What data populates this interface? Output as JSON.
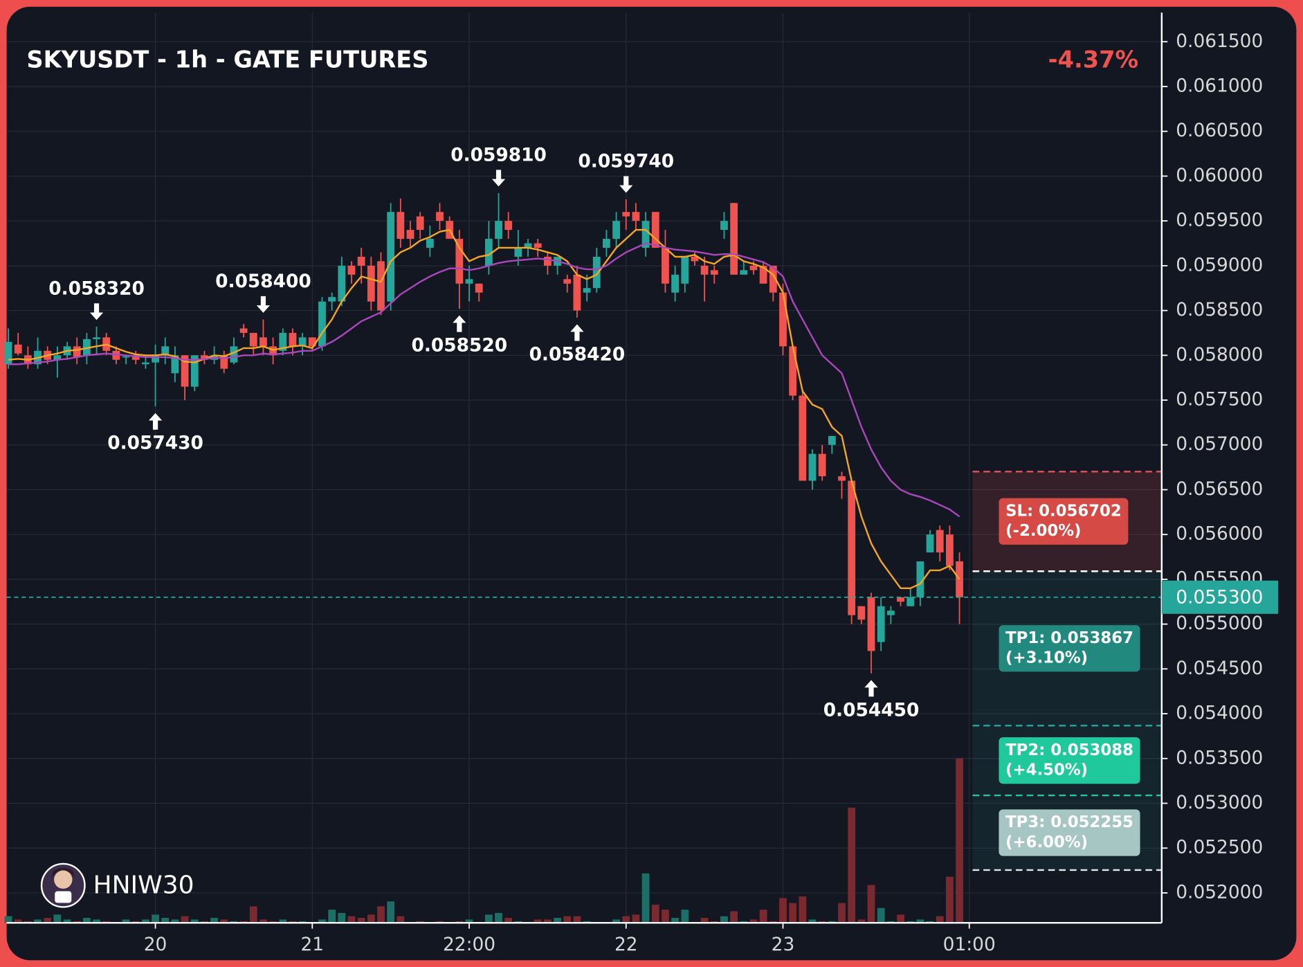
{
  "chart_data": {
    "type": "candlestick",
    "title": "SKYUSDT - 1h - GATE FUTURES",
    "change": "-4.37%",
    "watermark": "HNIW30",
    "categories": [
      null,
      null,
      null,
      null,
      null,
      null,
      null,
      null,
      null,
      null,
      null,
      null,
      null,
      null,
      null,
      "20",
      null,
      null,
      null,
      null,
      null,
      null,
      null,
      null,
      null,
      null,
      null,
      null,
      null,
      null,
      null,
      "21",
      null,
      null,
      null,
      null,
      null,
      null,
      null,
      null,
      null,
      null,
      null,
      null,
      null,
      null,
      null,
      "22:00",
      null,
      null,
      null,
      null,
      null,
      null,
      null,
      null,
      null,
      null,
      null,
      null,
      null,
      null,
      null,
      "22",
      null,
      null,
      null,
      null,
      null,
      null,
      null,
      null,
      null,
      null,
      null,
      null,
      null,
      null,
      null,
      "23",
      null,
      null,
      null,
      null,
      null,
      null,
      null,
      null,
      null,
      null,
      null,
      null,
      null,
      null,
      null,
      null,
      null,
      null,
      "01:00"
    ],
    "open": [
      0.0579,
      0.05812,
      0.058,
      0.0579,
      0.05805,
      0.05795,
      0.058,
      0.0581,
      0.058,
      0.05818,
      0.0582,
      0.05805,
      0.05798,
      0.058,
      0.0579,
      0.05792,
      0.058,
      0.0578,
      0.058,
      0.05765,
      0.058,
      0.05795,
      0.058,
      0.05792,
      0.0583,
      0.05825,
      0.0582,
      0.0581,
      0.05805,
      0.05825,
      0.0581,
      0.0582,
      0.0581,
      0.0586,
      0.0586,
      0.059,
      0.0591,
      0.059,
      0.05905,
      0.0586,
      0.0596,
      0.0594,
      0.05955,
      0.0592,
      0.0596,
      0.0595,
      0.0593,
      0.0588,
      0.0588,
      0.059,
      0.0593,
      0.0595,
      0.0591,
      0.0592,
      0.05925,
      0.0591,
      0.059,
      0.05885,
      0.0589,
      0.0587,
      0.05875,
      0.0592,
      0.0593,
      0.0596,
      0.0596,
      0.0592,
      0.0596,
      0.0592,
      0.0587,
      0.0588,
      0.0591,
      0.059,
      0.05895,
      0.0594,
      0.0597,
      0.0589,
      0.059,
      0.059,
      0.059,
      0.0587,
      0.0581,
      0.05755,
      0.0566,
      0.0569,
      0.057,
      0.05665,
      0.0566,
      0.0552,
      0.0553,
      0.0548,
      0.0551,
      0.0553,
      0.0552,
      0.0553,
      0.0558,
      0.05605,
      0.056,
      0.0557,
      null
    ],
    "high": [
      0.0583,
      0.05825,
      0.0581,
      0.0582,
      0.0581,
      0.0581,
      0.05815,
      0.0582,
      0.05825,
      0.05832,
      0.05825,
      0.0581,
      0.058,
      0.05805,
      0.058,
      0.05812,
      0.0582,
      0.0581,
      0.058,
      0.058,
      0.05805,
      0.0581,
      0.05805,
      0.0582,
      0.05835,
      0.05825,
      0.0584,
      0.0582,
      0.0583,
      0.0583,
      0.05825,
      0.0582,
      0.05865,
      0.0587,
      0.0591,
      0.05905,
      0.0592,
      0.0591,
      0.05915,
      0.0597,
      0.05975,
      0.0595,
      0.0596,
      0.05945,
      0.0597,
      0.05955,
      0.0594,
      0.059,
      0.0588,
      0.0595,
      0.05981,
      0.0596,
      0.0594,
      0.0593,
      0.0593,
      0.05915,
      0.0591,
      0.0589,
      0.059,
      0.0589,
      0.0592,
      0.0594,
      0.0596,
      0.05974,
      0.0597,
      0.0596,
      0.0596,
      0.0594,
      0.059,
      0.0591,
      0.05915,
      0.0591,
      0.059,
      0.0596,
      0.0597,
      0.05905,
      0.05905,
      0.05905,
      0.059,
      0.0588,
      0.0581,
      0.0576,
      0.05695,
      0.057,
      0.0571,
      0.0567,
      0.0566,
      0.0552,
      0.05535,
      0.0553,
      0.0552,
      0.0553,
      0.0554,
      0.0557,
      0.05605,
      0.0561,
      0.0561,
      0.0558,
      null
    ],
    "low": [
      0.05785,
      0.058,
      0.05785,
      0.05785,
      0.0579,
      0.05775,
      0.05795,
      0.0579,
      0.0579,
      0.058,
      0.058,
      0.0579,
      0.0579,
      0.0579,
      0.05785,
      0.05743,
      0.0579,
      0.0577,
      0.0575,
      0.0576,
      0.0579,
      0.0579,
      0.0578,
      0.0579,
      0.0582,
      0.058,
      0.058,
      0.0579,
      0.058,
      0.058,
      0.058,
      0.05805,
      0.05805,
      0.0585,
      0.05855,
      0.0588,
      0.0588,
      0.0585,
      0.05845,
      0.0585,
      0.0592,
      0.0592,
      0.0593,
      0.0591,
      0.0594,
      0.0593,
      0.05852,
      0.0586,
      0.0586,
      0.0589,
      0.0592,
      0.0593,
      0.059,
      0.0591,
      0.0591,
      0.0589,
      0.0589,
      0.0587,
      0.05842,
      0.0586,
      0.0587,
      0.0591,
      0.0592,
      0.0594,
      0.0594,
      0.0591,
      0.0592,
      0.0587,
      0.0586,
      0.0587,
      0.059,
      0.0586,
      0.0588,
      0.0593,
      0.0589,
      0.0589,
      0.0589,
      0.0588,
      0.0586,
      0.058,
      0.0575,
      0.0566,
      0.0565,
      0.0566,
      0.0569,
      0.0564,
      0.055,
      0.055,
      0.05445,
      0.0547,
      0.055,
      0.0552,
      0.0552,
      0.0552,
      0.0558,
      0.0557,
      0.0556,
      0.055,
      null
    ],
    "close": [
      0.05815,
      0.05802,
      0.0579,
      0.05805,
      0.05795,
      0.058,
      0.0581,
      0.05798,
      0.05818,
      0.0582,
      0.05805,
      0.05795,
      0.05799,
      0.05795,
      0.05792,
      0.058,
      0.0581,
      0.058,
      0.05765,
      0.058,
      0.05795,
      0.058,
      0.05785,
      0.0581,
      0.05825,
      0.0581,
      0.0581,
      0.058,
      0.05825,
      0.0581,
      0.0582,
      0.0581,
      0.0586,
      0.05865,
      0.059,
      0.0589,
      0.059,
      0.0586,
      0.0585,
      0.0596,
      0.0593,
      0.0593,
      0.0594,
      0.0593,
      0.0595,
      0.0593,
      0.0588,
      0.05885,
      0.0587,
      0.0593,
      0.0595,
      0.0594,
      0.0592,
      0.05925,
      0.0592,
      0.059,
      0.0591,
      0.0588,
      0.0585,
      0.05875,
      0.0591,
      0.0593,
      0.0595,
      0.05955,
      0.0595,
      0.0595,
      0.0592,
      0.0588,
      0.0589,
      0.0591,
      0.05905,
      0.0589,
      0.0589,
      0.0595,
      0.0589,
      0.05895,
      0.05895,
      0.0588,
      0.0587,
      0.0581,
      0.05755,
      0.0566,
      0.0569,
      0.05665,
      0.0571,
      0.0566,
      0.0551,
      0.05505,
      0.0547,
      0.0552,
      0.05515,
      0.05525,
      0.0553,
      0.0557,
      0.056,
      0.0558,
      0.05565,
      0.0553,
      null
    ],
    "volume": [
      4,
      2,
      1,
      2,
      3,
      5,
      2,
      1,
      3,
      2,
      1,
      0,
      2,
      1,
      2,
      5,
      3,
      2,
      4,
      2,
      1,
      3,
      2,
      1,
      1,
      10,
      2,
      1,
      2,
      1,
      1,
      0,
      2,
      8,
      6,
      4,
      3,
      5,
      10,
      13,
      4,
      0,
      1,
      0,
      1,
      0,
      1,
      2,
      0,
      5,
      6,
      3,
      1,
      0,
      2,
      2,
      3,
      4,
      4,
      1,
      0,
      0,
      2,
      4,
      5,
      30,
      11,
      8,
      3,
      8,
      0,
      3,
      1,
      4,
      7,
      1,
      2,
      8,
      1,
      15,
      12,
      16,
      2,
      1,
      1,
      12,
      70,
      2,
      23,
      9,
      1,
      5,
      1,
      2,
      1,
      4,
      28,
      100,
      null
    ],
    "up_color": "#26a69a",
    "down_color": "#ef5350",
    "up_volume_color": "#1c6e67",
    "down_volume_color": "#7a2a2e",
    "ma_lines": [
      {
        "color": "#f5a623",
        "values": [
          0.05795,
          0.05796,
          0.05795,
          0.05797,
          0.058,
          0.05802,
          0.05805,
          0.05806,
          0.05808,
          0.0581,
          0.05812,
          0.05808,
          0.05804,
          0.05801,
          0.058,
          0.058,
          0.05801,
          0.05799,
          0.05793,
          0.05792,
          0.05796,
          0.058,
          0.05799,
          0.05803,
          0.05808,
          0.05808,
          0.0581,
          0.05806,
          0.05808,
          0.0581,
          0.05811,
          0.05808,
          0.05825,
          0.0584,
          0.0586,
          0.05875,
          0.05888,
          0.05885,
          0.05882,
          0.05905,
          0.05915,
          0.0592,
          0.05928,
          0.05932,
          0.05938,
          0.0594,
          0.0592,
          0.05905,
          0.0591,
          0.05912,
          0.0592,
          0.0592,
          0.0592,
          0.0592,
          0.05918,
          0.05915,
          0.05912,
          0.05905,
          0.0589,
          0.05885,
          0.0589,
          0.05905,
          0.0592,
          0.0593,
          0.0594,
          0.0594,
          0.0593,
          0.0592,
          0.0591,
          0.0591,
          0.05912,
          0.05905,
          0.05902,
          0.0591,
          0.05912,
          0.05905,
          0.05902,
          0.05898,
          0.0589,
          0.0587,
          0.0581,
          0.0576,
          0.05745,
          0.0574,
          0.0572,
          0.0571,
          0.0566,
          0.0562,
          0.0559,
          0.0557,
          0.05555,
          0.0554,
          0.0554,
          0.05545,
          0.0556,
          0.0556,
          0.05565,
          0.0555,
          null
        ]
      },
      {
        "color": "#ab47bc",
        "values": [
          0.0579,
          0.0579,
          0.05791,
          0.05792,
          0.05793,
          0.05795,
          0.05796,
          0.05798,
          0.058,
          0.05801,
          0.05802,
          0.05801,
          0.058,
          0.05799,
          0.05798,
          0.05798,
          0.05798,
          0.05797,
          0.05795,
          0.05795,
          0.05796,
          0.05797,
          0.05797,
          0.05798,
          0.058,
          0.058,
          0.05802,
          0.05801,
          0.05802,
          0.05803,
          0.05805,
          0.05805,
          0.0581,
          0.05815,
          0.05822,
          0.0583,
          0.05838,
          0.05843,
          0.05848,
          0.05858,
          0.05868,
          0.05875,
          0.05882,
          0.05888,
          0.05893,
          0.05897,
          0.05897,
          0.05895,
          0.05897,
          0.059,
          0.05903,
          0.05905,
          0.05906,
          0.05907,
          0.05908,
          0.05907,
          0.05905,
          0.05902,
          0.05898,
          0.05896,
          0.05896,
          0.059,
          0.05908,
          0.05915,
          0.0592,
          0.05925,
          0.05923,
          0.0592,
          0.05918,
          0.05917,
          0.05916,
          0.05914,
          0.05912,
          0.05913,
          0.05913,
          0.0591,
          0.05907,
          0.05904,
          0.05898,
          0.05888,
          0.0586,
          0.0584,
          0.0582,
          0.058,
          0.0579,
          0.0578,
          0.0575,
          0.0572,
          0.05695,
          0.05675,
          0.0566,
          0.0565,
          0.05645,
          0.05642,
          0.05638,
          0.05633,
          0.05628,
          0.0562,
          null
        ]
      }
    ],
    "annotations": [
      {
        "value": 0.05832,
        "label": "0.058320"
      },
      {
        "value": 0.05743,
        "label": "0.057430"
      },
      {
        "value": 0.0584,
        "label": "0.058400"
      },
      {
        "value": 0.05852,
        "label": "0.058520"
      },
      {
        "value": 0.05981,
        "label": "0.059810"
      },
      {
        "value": 0.05842,
        "label": "0.058420"
      },
      {
        "value": 0.05974,
        "label": "0.059740"
      },
      {
        "value": 0.05445,
        "label": "0.054450"
      }
    ],
    "entry": 0.05559,
    "stop": {
      "value": 0.056702,
      "label": "SL: 0.056702",
      "pct": "(-2.00%)",
      "color": "#d64a45",
      "line_color": "#e05555"
    },
    "targets": [
      {
        "value": 0.053867,
        "label": "TP1: 0.053867",
        "pct": "(+3.10%)",
        "color": "#22897f",
        "line_color": "#26a69a"
      },
      {
        "value": 0.053088,
        "label": "TP2: 0.053088",
        "pct": "(+4.50%)",
        "color": "#1fc99b",
        "line_color": "#26c6a0"
      },
      {
        "value": 0.052255,
        "label": "TP3: 0.052255",
        "pct": "(+6.00%)",
        "color": "#a6c6c3",
        "line_color": "#e6e6e6"
      }
    ],
    "last_price": {
      "value": 0.0553,
      "label": "0.055300",
      "color": "#26a69a"
    },
    "ylim": [
      0.051666,
      0.061825
    ],
    "yticks": [
      {
        "value": 0.052,
        "label": "0.052000"
      },
      {
        "value": 0.0525,
        "label": "0.052500"
      },
      {
        "value": 0.053,
        "label": "0.053000"
      },
      {
        "value": 0.0535,
        "label": "0.053500"
      },
      {
        "value": 0.054,
        "label": "0.054000"
      },
      {
        "value": 0.0545,
        "label": "0.054500"
      },
      {
        "value": 0.055,
        "label": "0.055000"
      },
      {
        "value": 0.0555,
        "label": "0.055500"
      },
      {
        "value": 0.056,
        "label": "0.056000"
      },
      {
        "value": 0.0565,
        "label": "0.056500"
      },
      {
        "value": 0.057,
        "label": "0.057000"
      },
      {
        "value": 0.0575,
        "label": "0.057500"
      },
      {
        "value": 0.058,
        "label": "0.058000"
      },
      {
        "value": 0.0585,
        "label": "0.058500"
      },
      {
        "value": 0.059,
        "label": "0.059000"
      },
      {
        "value": 0.0595,
        "label": "0.059500"
      },
      {
        "value": 0.06,
        "label": "0.060000"
      },
      {
        "value": 0.0605,
        "label": "0.060500"
      },
      {
        "value": 0.061,
        "label": "0.061000"
      },
      {
        "value": 0.0615,
        "label": "0.061500"
      }
    ],
    "grid": true
  }
}
